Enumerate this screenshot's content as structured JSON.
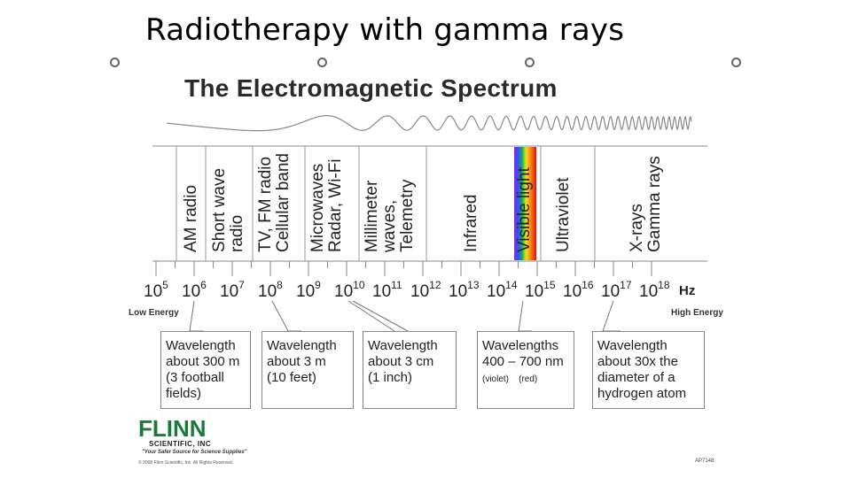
{
  "slide_title": "Radiotherapy with gamma rays",
  "spectrum_title": "The Electromagnetic Spectrum",
  "bands": [
    "AM radio",
    "Short wave\nradio",
    "TV, FM radio\nCellular band",
    "Microwaves\nRadar, Wi-Fi",
    "Millimeter\nwaves,\nTelemetry",
    "Infrared",
    "Visible light",
    "Ultraviolet",
    "X-rays\nGamma rays"
  ],
  "exponents": [
    "5",
    "6",
    "7",
    "8",
    "9",
    "10",
    "11",
    "12",
    "13",
    "14",
    "15",
    "16",
    "17",
    "18"
  ],
  "base": "10",
  "unit": "Hz",
  "low_energy": "Low Energy",
  "high_energy": "High Energy",
  "callouts": [
    {
      "text": "Wavelength\nabout 300 m\n(3 football\nfields)"
    },
    {
      "text": "Wavelength\nabout 3 m\n(10 feet)"
    },
    {
      "text": "Wavelength\nabout 3 cm\n(1 inch)"
    },
    {
      "text": "Wavelengths\n400 – 700 nm",
      "sub": "(violet)    (red)"
    },
    {
      "text": "Wavelength\nabout 30x the\ndiameter of a\nhydrogen atom"
    }
  ],
  "logo": {
    "name": "FLINN",
    "sub": "SCIENTIFIC, INC",
    "tagline": "\"Your Safer Source for Science Supplies\"",
    "copyright": "© 2008 Flinn Scientific, Inc. All Rights Reserved."
  },
  "catalog_code": "AP7148",
  "colors": {
    "logo_green": "#1a7a3a",
    "line": "#777777"
  }
}
